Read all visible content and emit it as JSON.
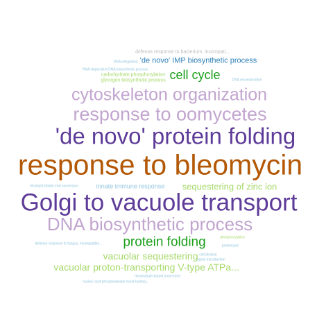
{
  "palette": {
    "purple": "#5e3c99",
    "lavender": "#c2a5cf",
    "brown": "#b35806",
    "green": "#1b9e1b",
    "lightgreen": "#a6d96a",
    "blue": "#2c7fb8",
    "lightblue": "#92c5de",
    "gray": "#bcbcbc"
  },
  "words": [
    {
      "text": "defense response to bacterium, incompati...",
      "color": "#bcbcbc"
    },
    {
      "text": "'de novo' IMP biosynthetic process",
      "color": "#2c7fb8"
    },
    {
      "text": "DNA integration",
      "color": "#92c5de"
    },
    {
      "text": "RNA-dependent DNA biosynthetic process",
      "color": "#92c5de"
    },
    {
      "text": "cell cycle",
      "color": "#1b9e1b"
    },
    {
      "text": "carbohydrate phosphorylation",
      "color": "#a6d96a"
    },
    {
      "text": "glycogen biosynthetic process",
      "color": "#a6d96a"
    },
    {
      "text": "DNA recombination",
      "color": "#92c5de"
    },
    {
      "text": "cytoskeleton organization",
      "color": "#c2a5cf"
    },
    {
      "text": "response to oomycetes",
      "color": "#c2a5cf"
    },
    {
      "text": "'de novo' protein folding",
      "color": "#5e3c99"
    },
    {
      "text": "response to bleomycin",
      "color": "#b35806"
    },
    {
      "text": "tetrahydrofolate interconversion",
      "color": "#92c5de"
    },
    {
      "text": "innate immune response",
      "color": "#92c5de"
    },
    {
      "text": "sequestering of zinc ion",
      "color": "#a6d96a"
    },
    {
      "text": "Golgi to vacuole transport",
      "color": "#5e3c99"
    },
    {
      "text": "DNA biosynthetic process",
      "color": "#c2a5cf"
    },
    {
      "text": "phosphorylation",
      "color": "#a6d96a"
    },
    {
      "text": "defense response to fungus, incompatible...",
      "color": "#92c5de"
    },
    {
      "text": "protein folding",
      "color": "#1b9e1b"
    },
    {
      "text": "proteolysis",
      "color": "#92c5de"
    },
    {
      "text": "cell division",
      "color": "#92c5de"
    },
    {
      "text": "vacuolar sequestering",
      "color": "#a6d96a"
    },
    {
      "text": "signal transduction",
      "color": "#92c5de"
    },
    {
      "text": "vacuolar proton-transporting V-type ATPa...",
      "color": "#a6d96a"
    },
    {
      "text": "microtubule-based movement",
      "color": "#92c5de"
    },
    {
      "text": "nucleic acid phosphodiester bond hydroly...",
      "color": "#92c5de"
    }
  ]
}
